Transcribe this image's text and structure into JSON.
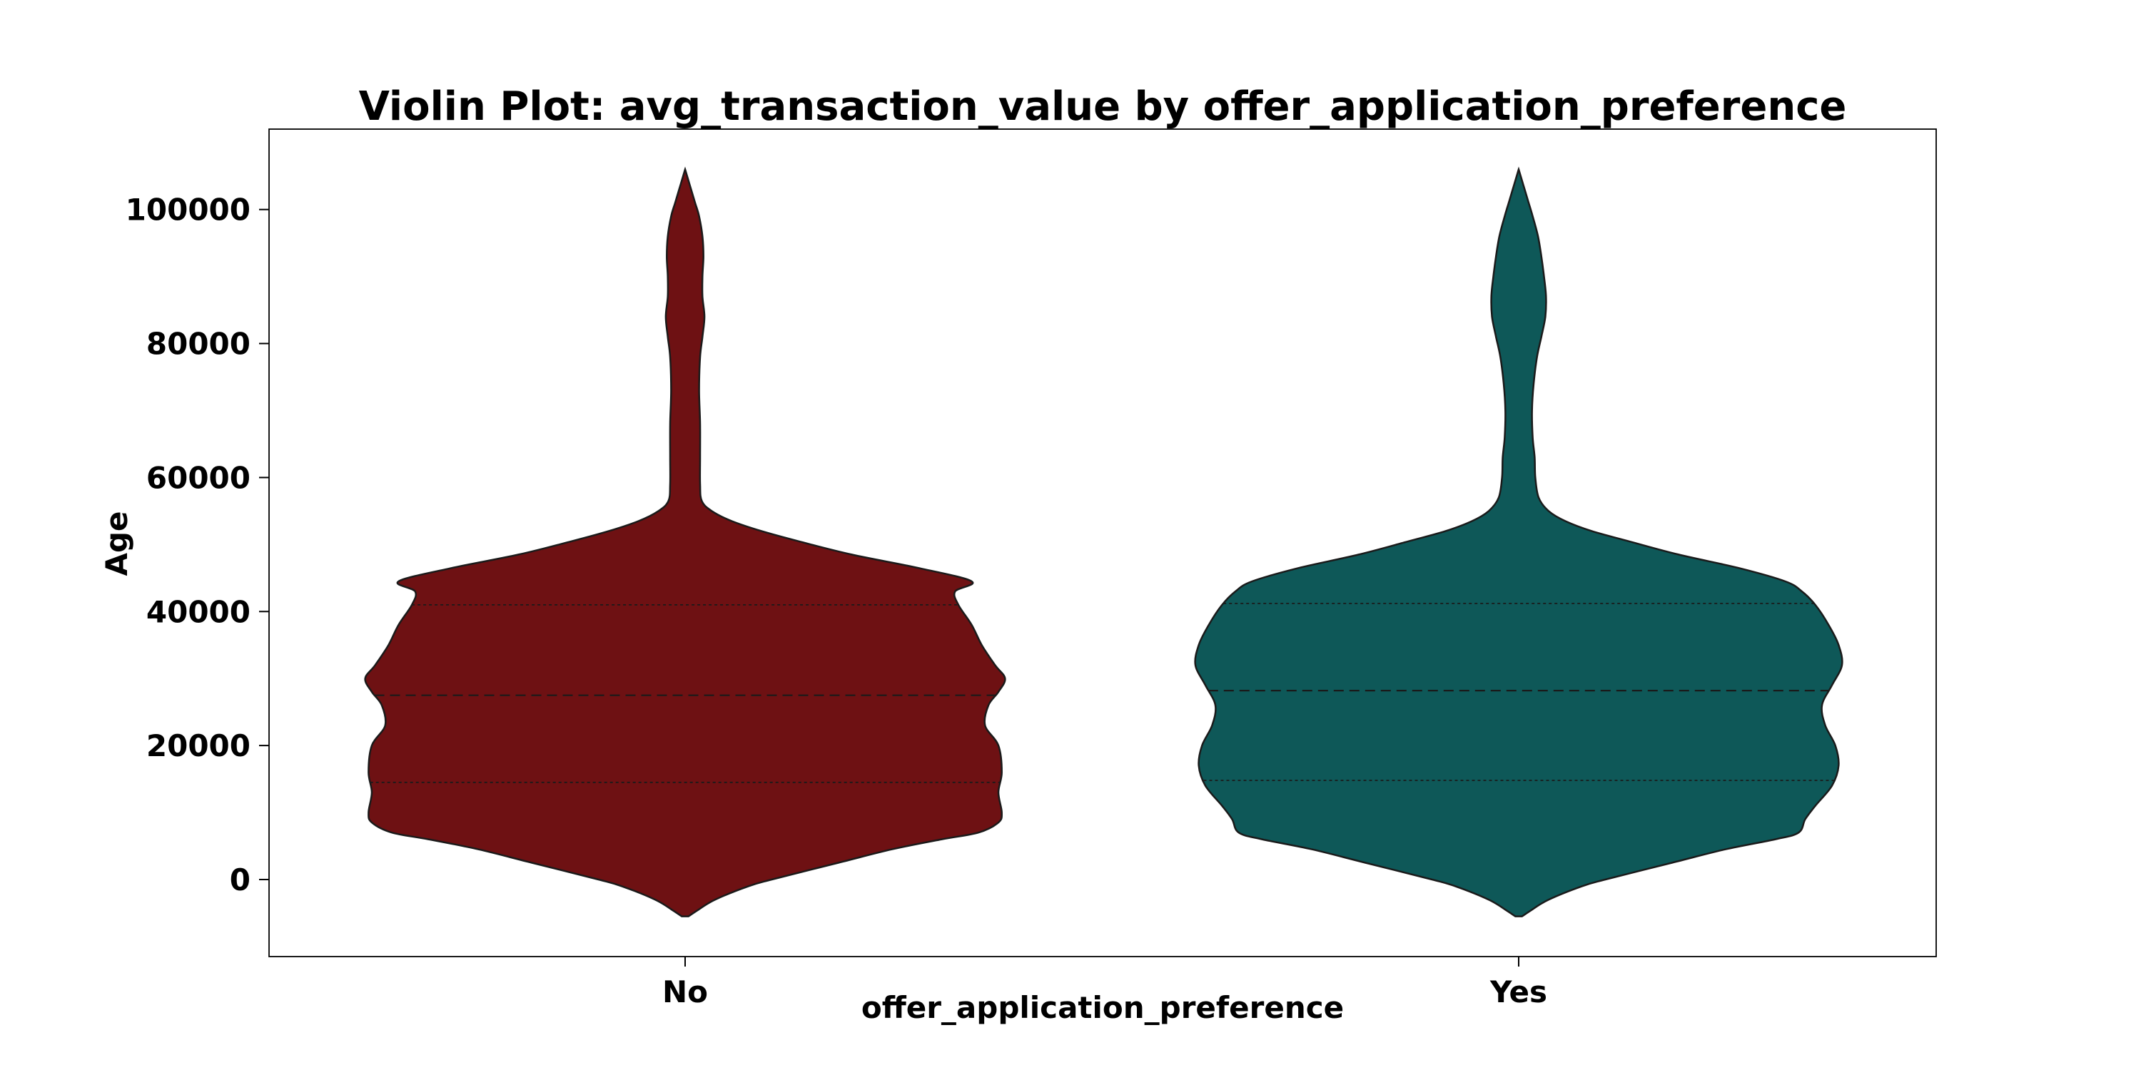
{
  "chart_data": {
    "type": "violin",
    "title": "Violin Plot: avg_transaction_value by offer_application_preference",
    "xlabel": "offer_application_preference",
    "ylabel": "Age",
    "ylim": [
      -11500,
      112000
    ],
    "yticks": [
      0,
      20000,
      40000,
      60000,
      80000,
      100000
    ],
    "ytick_labels": [
      "0",
      "20000",
      "40000",
      "60000",
      "80000",
      "100000"
    ],
    "grid": false,
    "inner": "quartile",
    "categories": [
      "No",
      "Yes"
    ],
    "series": [
      {
        "category": "No",
        "color": "#6e1113",
        "quartiles": [
          14500,
          27500,
          41000
        ],
        "density_profile": [
          [
            -5500,
            0.01
          ],
          [
            -4500,
            0.04
          ],
          [
            -3000,
            0.09
          ],
          [
            -1000,
            0.19
          ],
          [
            0,
            0.26
          ],
          [
            2500,
            0.46
          ],
          [
            4500,
            0.62
          ],
          [
            6000,
            0.77
          ],
          [
            7000,
            0.88
          ],
          [
            8500,
            0.94
          ],
          [
            10000,
            0.95
          ],
          [
            13000,
            0.94
          ],
          [
            16000,
            0.95
          ],
          [
            20000,
            0.94
          ],
          [
            23000,
            0.9
          ],
          [
            26000,
            0.91
          ],
          [
            28000,
            0.94
          ],
          [
            30000,
            0.96
          ],
          [
            32000,
            0.93
          ],
          [
            35000,
            0.89
          ],
          [
            38000,
            0.86
          ],
          [
            41000,
            0.82
          ],
          [
            43000,
            0.81
          ],
          [
            44500,
            0.86
          ],
          [
            46500,
            0.7
          ],
          [
            48500,
            0.5
          ],
          [
            50500,
            0.34
          ],
          [
            52000,
            0.23
          ],
          [
            53500,
            0.14
          ],
          [
            55000,
            0.08
          ],
          [
            56500,
            0.05
          ],
          [
            59000,
            0.045
          ],
          [
            63000,
            0.045
          ],
          [
            68000,
            0.045
          ],
          [
            73000,
            0.042
          ],
          [
            78000,
            0.045
          ],
          [
            81000,
            0.052
          ],
          [
            84000,
            0.058
          ],
          [
            87000,
            0.052
          ],
          [
            90000,
            0.052
          ],
          [
            93000,
            0.055
          ],
          [
            96000,
            0.052
          ],
          [
            99000,
            0.042
          ],
          [
            101000,
            0.03
          ],
          [
            103000,
            0.018
          ],
          [
            105000,
            0.006
          ],
          [
            106000,
            0.0
          ]
        ]
      },
      {
        "category": "Yes",
        "color": "#0e5858",
        "quartiles": [
          14800,
          28200,
          41200
        ],
        "density_profile": [
          [
            -5500,
            0.01
          ],
          [
            -4500,
            0.04
          ],
          [
            -3000,
            0.09
          ],
          [
            -1000,
            0.19
          ],
          [
            0,
            0.26
          ],
          [
            2500,
            0.46
          ],
          [
            4500,
            0.62
          ],
          [
            6000,
            0.77
          ],
          [
            7000,
            0.84
          ],
          [
            9000,
            0.86
          ],
          [
            11000,
            0.89
          ],
          [
            14000,
            0.94
          ],
          [
            17000,
            0.96
          ],
          [
            20000,
            0.95
          ],
          [
            23000,
            0.92
          ],
          [
            26000,
            0.91
          ],
          [
            29000,
            0.94
          ],
          [
            32000,
            0.97
          ],
          [
            35000,
            0.96
          ],
          [
            38000,
            0.93
          ],
          [
            41000,
            0.89
          ],
          [
            43000,
            0.85
          ],
          [
            44500,
            0.8
          ],
          [
            46500,
            0.66
          ],
          [
            48500,
            0.48
          ],
          [
            50500,
            0.33
          ],
          [
            52000,
            0.22
          ],
          [
            53500,
            0.14
          ],
          [
            55000,
            0.09
          ],
          [
            57000,
            0.06
          ],
          [
            60000,
            0.05
          ],
          [
            63000,
            0.048
          ],
          [
            66000,
            0.042
          ],
          [
            70000,
            0.04
          ],
          [
            74000,
            0.045
          ],
          [
            78000,
            0.055
          ],
          [
            81000,
            0.068
          ],
          [
            84000,
            0.08
          ],
          [
            87000,
            0.082
          ],
          [
            90000,
            0.076
          ],
          [
            93000,
            0.068
          ],
          [
            96000,
            0.058
          ],
          [
            99000,
            0.042
          ],
          [
            101000,
            0.03
          ],
          [
            103000,
            0.018
          ],
          [
            105000,
            0.006
          ],
          [
            106000,
            0.0
          ]
        ]
      }
    ]
  }
}
